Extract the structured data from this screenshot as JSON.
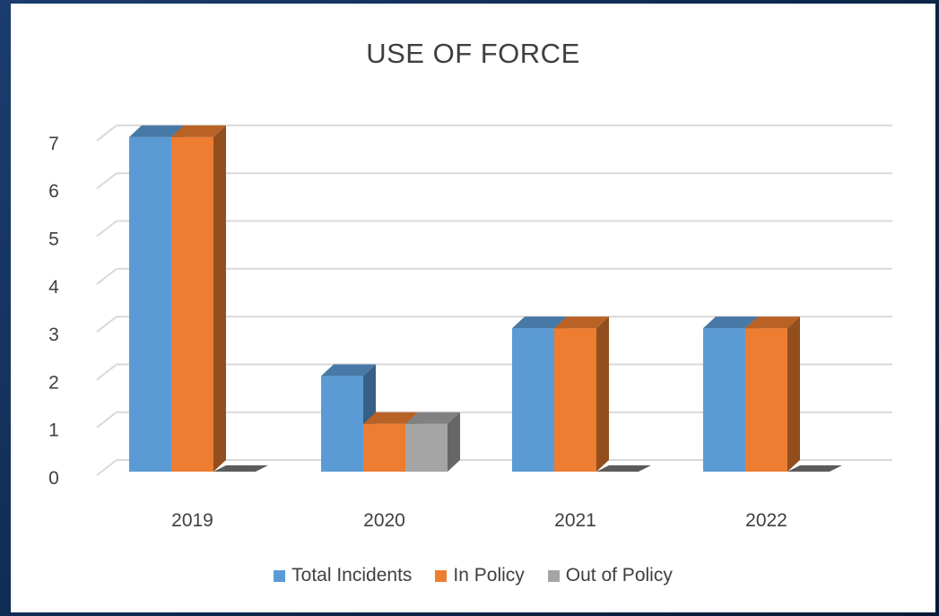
{
  "chart_data": {
    "type": "bar",
    "title": "USE OF FORCE",
    "categories": [
      "2019",
      "2020",
      "2021",
      "2022"
    ],
    "series": [
      {
        "name": "Total Incidents",
        "values": [
          7,
          2,
          3,
          3
        ],
        "color": "#5b9bd5"
      },
      {
        "name": "In Policy",
        "values": [
          7,
          1,
          3,
          3
        ],
        "color": "#ed7d31"
      },
      {
        "name": "Out of Policy",
        "values": [
          0,
          1,
          0,
          0
        ],
        "color": "#a5a5a5"
      }
    ],
    "yticks": [
      "0",
      "1",
      "2",
      "3",
      "4",
      "5",
      "6",
      "7"
    ],
    "ylim": [
      0,
      7
    ],
    "grid": true,
    "legend_position": "bottom",
    "style": "3d-clustered-column"
  }
}
